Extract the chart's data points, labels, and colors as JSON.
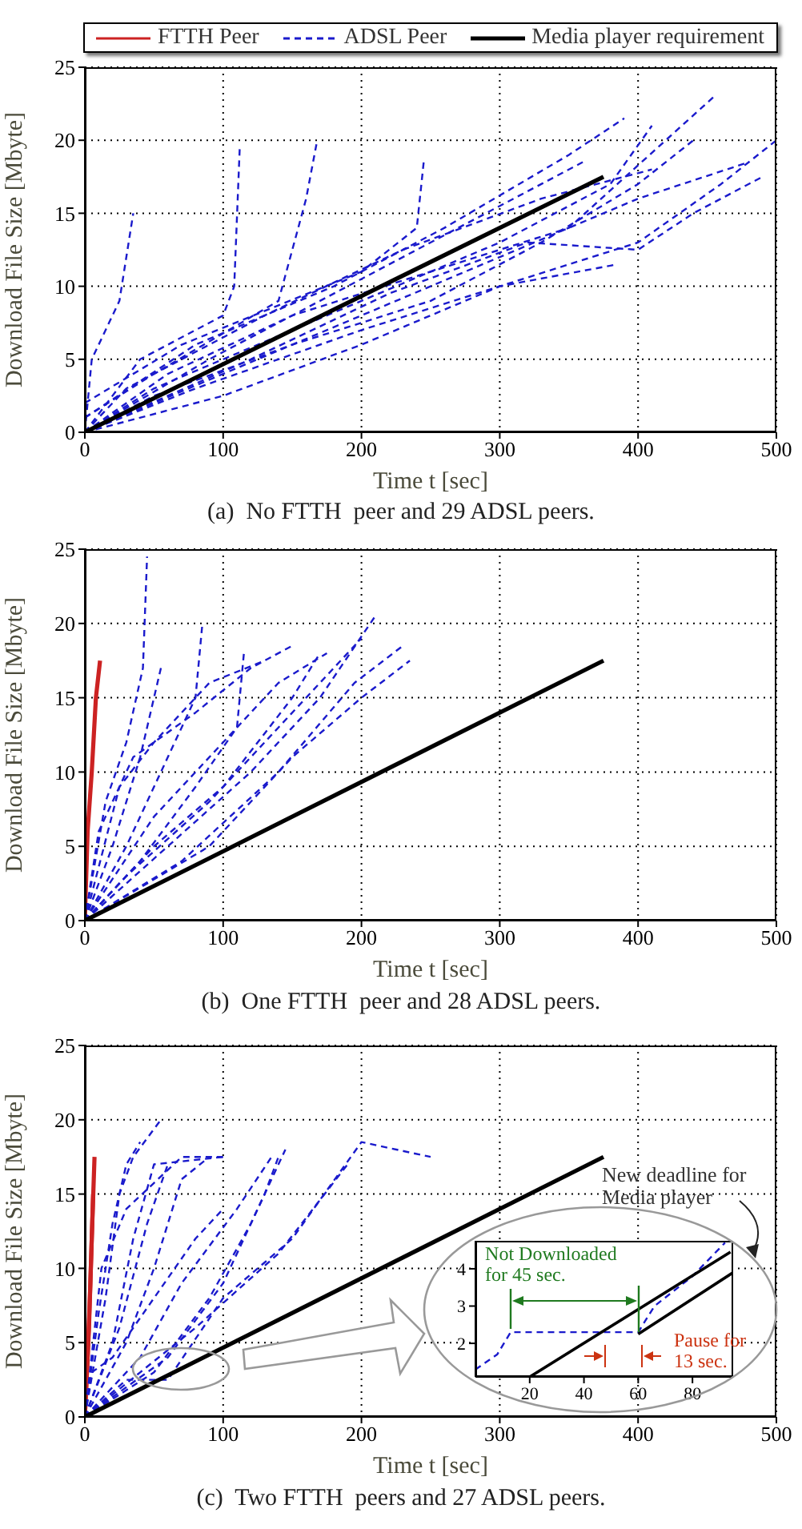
{
  "chart_data": [
    {
      "type": "line",
      "xlabel": "Time t [sec]",
      "ylabel": "Download File Size [Mbyte]",
      "xlim": [
        0,
        500
      ],
      "ylim": [
        0,
        25
      ],
      "xticks": [
        0,
        100,
        200,
        300,
        400,
        500
      ],
      "yticks": [
        0,
        5,
        10,
        15,
        20,
        25
      ],
      "grid": true,
      "legend": "top",
      "annotations": [
        "(a)  No FTTH  peer and 29 ADSL peers."
      ],
      "series": [
        {
          "name": "FTTH Peer",
          "color": "#cc2222",
          "line_style": "solid"
        },
        {
          "name": "ADSL Peer",
          "color": "#1a1acc",
          "line_style": "dashed",
          "x": [
            0,
            5,
            25,
            35
          ],
          "values": [
            0,
            5,
            9,
            15
          ]
        },
        {
          "color": "#1a1acc",
          "line_style": "dashed",
          "x": [
            0,
            40,
            100,
            108,
            112
          ],
          "values": [
            0,
            5,
            8,
            10,
            19.5
          ]
        },
        {
          "color": "#1a1acc",
          "line_style": "dashed",
          "x": [
            0,
            50,
            140,
            160,
            168
          ],
          "values": [
            1,
            4,
            9,
            16,
            20
          ]
        },
        {
          "color": "#1a1acc",
          "line_style": "dashed",
          "x": [
            0,
            70,
            200,
            240,
            245
          ],
          "values": [
            2,
            6,
            11,
            14,
            18.5
          ]
        },
        {
          "color": "#1a1acc",
          "line_style": "dashed",
          "x": [
            0,
            50,
            100,
            200,
            300,
            380,
            410
          ],
          "values": [
            0,
            3,
            5,
            9,
            13,
            17,
            21
          ]
        },
        {
          "color": "#1a1acc",
          "line_style": "dashed",
          "x": [
            0,
            100,
            200,
            300,
            400,
            460,
            500
          ],
          "values": [
            0,
            2.5,
            6,
            10,
            13,
            17,
            20
          ]
        },
        {
          "color": "#1a1acc",
          "line_style": "dashed",
          "x": [
            0,
            80,
            180,
            260,
            350,
            390
          ],
          "values": [
            1,
            6,
            10,
            14,
            19,
            21.5
          ]
        },
        {
          "color": "#1a1acc",
          "line_style": "dashed",
          "x": [
            0,
            60,
            150,
            250,
            350,
            420,
            455
          ],
          "values": [
            0,
            4,
            8,
            11,
            14,
            20,
            23
          ]
        },
        {
          "color": "#1a1acc",
          "line_style": "dashed",
          "x": [
            0,
            80,
            200,
            300,
            385
          ],
          "values": [
            0,
            3,
            7,
            10,
            11.5
          ]
        },
        {
          "color": "#1a1acc",
          "line_style": "dashed",
          "x": [
            0,
            100,
            200,
            300,
            400,
            480
          ],
          "values": [
            0,
            4,
            8,
            12,
            16,
            18.5
          ]
        },
        {
          "color": "#1a1acc",
          "line_style": "dashed",
          "x": [
            0,
            120,
            220,
            320,
            400,
            440,
            490
          ],
          "values": [
            0,
            5,
            9.5,
            13,
            12.5,
            15,
            17.5
          ]
        },
        {
          "color": "#1a1acc",
          "line_style": "dashed",
          "x": [
            0,
            90,
            190,
            290,
            360
          ],
          "values": [
            0,
            5,
            10,
            15,
            18.5
          ]
        },
        {
          "color": "#1a1acc",
          "line_style": "dashed",
          "x": [
            0,
            50,
            150,
            250,
            330,
            400,
            440
          ],
          "values": [
            0,
            2.5,
            6,
            9,
            13,
            17,
            20
          ]
        },
        {
          "color": "#1a1acc",
          "line_style": "dashed",
          "x": [
            0,
            30,
            130,
            230,
            330,
            410
          ],
          "values": [
            0,
            3,
            8,
            12.5,
            16,
            18
          ]
        },
        {
          "name": "Media player requirement",
          "color": "#000000",
          "line_style": "solid",
          "x": [
            0,
            375
          ],
          "values": [
            0,
            17.5
          ]
        }
      ]
    },
    {
      "type": "line",
      "xlabel": "Time t [sec]",
      "ylabel": "Download File Size [Mbyte]",
      "xlim": [
        0,
        500
      ],
      "ylim": [
        0,
        25
      ],
      "xticks": [
        0,
        100,
        200,
        300,
        400,
        500
      ],
      "yticks": [
        0,
        5,
        10,
        15,
        20,
        25
      ],
      "grid": true,
      "annotations": [
        "(b)  One FTTH  peer and 28 ADSL peers."
      ],
      "series": [
        {
          "color": "#cc2222",
          "line_style": "solid",
          "x": [
            0,
            2,
            5,
            8,
            11
          ],
          "values": [
            0,
            6,
            10,
            15,
            17.5
          ]
        },
        {
          "color": "#1a1acc",
          "line_style": "dashed",
          "x": [
            0,
            15,
            30,
            42,
            45
          ],
          "values": [
            0,
            8,
            12,
            17,
            24.5
          ]
        },
        {
          "color": "#1a1acc",
          "line_style": "dashed",
          "x": [
            0,
            20,
            40,
            55
          ],
          "values": [
            0,
            5,
            11,
            17
          ]
        },
        {
          "color": "#1a1acc",
          "line_style": "dashed",
          "x": [
            0,
            30,
            60,
            80,
            85
          ],
          "values": [
            0,
            5,
            11,
            15,
            20
          ]
        },
        {
          "color": "#1a1acc",
          "line_style": "dashed",
          "x": [
            0,
            40,
            80,
            110,
            115
          ],
          "values": [
            0,
            4,
            9,
            13,
            18
          ]
        },
        {
          "color": "#1a1acc",
          "line_style": "dashed",
          "x": [
            0,
            50,
            100,
            150,
            170
          ],
          "values": [
            0,
            5,
            9,
            15,
            18
          ]
        },
        {
          "color": "#1a1acc",
          "line_style": "dashed",
          "x": [
            0,
            60,
            120,
            170,
            210
          ],
          "values": [
            0,
            5,
            10,
            15,
            20.5
          ]
        },
        {
          "color": "#1a1acc",
          "line_style": "dashed",
          "x": [
            0,
            70,
            140,
            195,
            230
          ],
          "values": [
            0,
            4,
            10,
            16,
            18.5
          ]
        },
        {
          "color": "#1a1acc",
          "line_style": "dashed",
          "x": [
            0,
            90,
            150,
            200,
            235
          ],
          "values": [
            0,
            5,
            11,
            15,
            17.5
          ]
        },
        {
          "color": "#1a1acc",
          "line_style": "dashed",
          "x": [
            0,
            30,
            90,
            140,
            190,
            200
          ],
          "values": [
            0,
            3,
            8,
            13,
            18,
            19
          ]
        },
        {
          "color": "#1a1acc",
          "line_style": "dashed",
          "x": [
            0,
            10,
            35,
            80,
            120,
            150
          ],
          "values": [
            0,
            6,
            11,
            14,
            17,
            18.5
          ]
        },
        {
          "color": "#1a1acc",
          "line_style": "dashed",
          "x": [
            0,
            50,
            100,
            140,
            175
          ],
          "values": [
            0,
            7,
            12,
            16,
            18
          ]
        },
        {
          "color": "#1a1acc",
          "line_style": "dashed",
          "x": [
            0,
            25,
            50,
            90,
            130
          ],
          "values": [
            0,
            9,
            12,
            16,
            17.5
          ]
        },
        {
          "color": "#000000",
          "line_style": "solid",
          "x": [
            0,
            375
          ],
          "values": [
            0,
            17.5
          ]
        }
      ]
    },
    {
      "type": "line",
      "xlabel": "Time t [sec]",
      "ylabel": "Download File Size [Mbyte]",
      "xlim": [
        0,
        500
      ],
      "ylim": [
        0,
        25
      ],
      "xticks": [
        0,
        100,
        200,
        300,
        400,
        500
      ],
      "yticks": [
        0,
        5,
        10,
        15,
        20,
        25
      ],
      "grid": true,
      "annotations": [
        "(c)  Two FTTH  peers and 27 ADSL peers.",
        "New deadline for\nMedia player"
      ],
      "series": [
        {
          "color": "#cc2222",
          "line_style": "solid",
          "x": [
            0,
            3,
            5,
            7
          ],
          "values": [
            0,
            6,
            12,
            17.5
          ]
        },
        {
          "color": "#cc2222",
          "line_style": "solid",
          "x": [
            0,
            2,
            4,
            6
          ],
          "values": [
            0,
            4,
            9,
            15
          ]
        },
        {
          "color": "#1a1acc",
          "line_style": "dashed",
          "x": [
            0,
            10,
            20,
            30,
            40
          ],
          "values": [
            0,
            7,
            13,
            17,
            18.5
          ]
        },
        {
          "color": "#1a1acc",
          "line_style": "dashed",
          "x": [
            0,
            15,
            25,
            35,
            55
          ],
          "values": [
            0,
            8,
            15,
            17.5,
            20
          ]
        },
        {
          "color": "#1a1acc",
          "line_style": "dashed",
          "x": [
            0,
            20,
            35,
            50,
            100
          ],
          "values": [
            0,
            5,
            12,
            17,
            17.5
          ]
        },
        {
          "color": "#1a1acc",
          "line_style": "dashed",
          "x": [
            0,
            30,
            50,
            70,
            90
          ],
          "values": [
            0,
            5,
            10,
            16,
            17.5
          ]
        },
        {
          "color": "#1a1acc",
          "line_style": "dashed",
          "x": [
            0,
            40,
            70,
            110,
            135
          ],
          "values": [
            0,
            4,
            9,
            14,
            17.5
          ]
        },
        {
          "color": "#1a1acc",
          "line_style": "dashed",
          "x": [
            0,
            50,
            90,
            120,
            145
          ],
          "values": [
            0,
            3,
            8,
            13,
            18
          ]
        },
        {
          "color": "#1a1acc",
          "line_style": "dashed",
          "x": [
            0,
            30,
            60,
            100,
            150,
            200,
            250
          ],
          "values": [
            0,
            2.5,
            2.5,
            8,
            12,
            18.5,
            17.5
          ]
        },
        {
          "color": "#1a1acc",
          "line_style": "dashed",
          "x": [
            0,
            40,
            80,
            140,
            190
          ],
          "values": [
            0,
            3,
            6,
            11,
            17
          ]
        },
        {
          "color": "#1a1acc",
          "line_style": "dashed",
          "x": [
            0,
            12,
            30,
            70,
            100
          ],
          "values": [
            0,
            10,
            14,
            17.5,
            17.5
          ]
        },
        {
          "color": "#1a1acc",
          "line_style": "dashed",
          "x": [
            0,
            25,
            45,
            60
          ],
          "values": [
            0,
            6,
            13,
            17
          ]
        },
        {
          "color": "#1a1acc",
          "line_style": "dashed",
          "x": [
            0,
            60,
            100,
            130,
            140
          ],
          "values": [
            0,
            4,
            9,
            15,
            17.5
          ]
        },
        {
          "color": "#1a1acc",
          "line_style": "dashed",
          "x": [
            0,
            5,
            20,
            50,
            80,
            100
          ],
          "values": [
            0,
            3,
            4,
            8,
            12,
            14
          ]
        },
        {
          "color": "#000000",
          "line_style": "solid",
          "x": [
            0,
            375
          ],
          "values": [
            0,
            17.5
          ]
        }
      ]
    },
    {
      "type": "line",
      "xlim": [
        0,
        95
      ],
      "ylim": [
        1.1,
        4.75
      ],
      "xticks": [
        20,
        40,
        60,
        80
      ],
      "yticks": [
        2,
        3,
        4
      ],
      "annotations": [
        {
          "text": "Not Downloaded\nfor 45 sec.",
          "x": 13,
          "y": 2.3
        },
        "Pause for\n13 sec."
      ],
      "series": [
        {
          "color": "#1a1acc",
          "line_style": "dashed",
          "x": [
            0,
            8,
            13,
            60,
            66,
            80,
            92
          ],
          "values": [
            1.3,
            1.7,
            2.3,
            2.3,
            3,
            3.8,
            4.7
          ]
        },
        {
          "color": "#000000",
          "line_style": "solid",
          "x": [
            20,
            94
          ],
          "values": [
            1.1,
            4.45
          ]
        },
        {
          "color": "#000000",
          "line_style": "solid",
          "x": [
            60,
            95
          ],
          "values": [
            2.25,
            3.9
          ]
        }
      ]
    }
  ]
}
